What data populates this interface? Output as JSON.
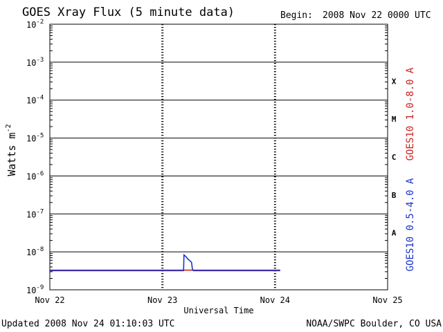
{
  "header": {
    "title": "GOES Xray Flux (5 minute data)",
    "begin_label": "Begin:",
    "begin_value": "2008 Nov 22 0000 UTC"
  },
  "footer": {
    "updated": "Updated 2008 Nov 24 01:10:03 UTC",
    "credit": "NOAA/SWPC Boulder, CO USA"
  },
  "colors": {
    "long_channel": "#cc2222",
    "short_channel": "#1a33cc",
    "grid": "#000000"
  },
  "chart_data": {
    "type": "line",
    "title": "GOES Xray Flux (5 minute data)",
    "xlabel": "Universal Time",
    "ylabel": "Watts m",
    "ylabel_superscript": "-2",
    "y_scale": "log",
    "ylim": [
      1e-09,
      0.01
    ],
    "xlim_hours": [
      0,
      72
    ],
    "x_ticks": [
      {
        "hour": 0,
        "label": "Nov 22"
      },
      {
        "hour": 24,
        "label": "Nov 23"
      },
      {
        "hour": 48,
        "label": "Nov 24"
      },
      {
        "hour": 72,
        "label": "Nov 25"
      }
    ],
    "y_ticks": [
      {
        "exp": -2,
        "base": "10",
        "sup": "-2"
      },
      {
        "exp": -3,
        "base": "10",
        "sup": "-3"
      },
      {
        "exp": -4,
        "base": "10",
        "sup": "-4"
      },
      {
        "exp": -5,
        "base": "10",
        "sup": "-5"
      },
      {
        "exp": -6,
        "base": "10",
        "sup": "-6"
      },
      {
        "exp": -7,
        "base": "10",
        "sup": "-7"
      },
      {
        "exp": -8,
        "base": "10",
        "sup": "-8"
      },
      {
        "exp": -9,
        "base": "10",
        "sup": "-9"
      }
    ],
    "flare_classes": [
      {
        "label": "X",
        "exp": -3.5
      },
      {
        "label": "M",
        "exp": -4.5
      },
      {
        "label": "C",
        "exp": -5.5
      },
      {
        "label": "B",
        "exp": -6.5
      },
      {
        "label": "A",
        "exp": -7.5
      }
    ],
    "grid": true,
    "series": [
      {
        "name": "GOES10 1.0-8.0 A",
        "color": "#cc2222",
        "points": [
          [
            0,
            3.3e-09
          ],
          [
            49.1,
            3.3e-09
          ]
        ]
      },
      {
        "name": "GOES10 0.5-4.0 A",
        "color": "#1a33cc",
        "points": [
          [
            0,
            3.2e-09
          ],
          [
            28.5,
            3.2e-09
          ],
          [
            28.6,
            8.3e-09
          ],
          [
            29.0,
            7.5e-09
          ],
          [
            29.4,
            6.5e-09
          ],
          [
            29.8,
            5.9e-09
          ],
          [
            30.2,
            5.3e-09
          ],
          [
            30.4,
            3.5e-09
          ],
          [
            30.6,
            3.2e-09
          ],
          [
            49.1,
            3.2e-09
          ]
        ]
      }
    ]
  }
}
